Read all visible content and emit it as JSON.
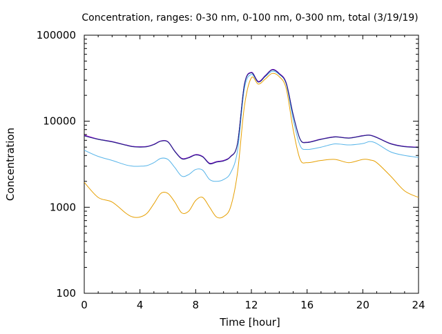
{
  "chart_data": {
    "type": "line",
    "title": "Concentration, ranges: 0-30 nm, 0-100 nm, 0-300 nm, total (3/19/19)",
    "xlabel": "Time [hour]",
    "ylabel": "Concentration",
    "xlim": [
      0,
      24
    ],
    "ylim": [
      100,
      100000
    ],
    "yscale": "log",
    "grid": false,
    "legend": "none",
    "x_ticks": [
      0,
      4,
      8,
      12,
      16,
      20,
      24
    ],
    "x_tick_labels": [
      "0",
      "4",
      "8",
      "12",
      "16",
      "20",
      "24"
    ],
    "y_ticks": [
      100,
      1000,
      10000,
      100000
    ],
    "y_tick_labels": [
      "100",
      "1000",
      "10000",
      "100000"
    ],
    "x": [
      0,
      1,
      2,
      3,
      3.5,
      4,
      4.5,
      5,
      5.5,
      6,
      6.5,
      7,
      7.5,
      8,
      8.5,
      9,
      9.5,
      10,
      10.5,
      11,
      11.5,
      12,
      12.5,
      13,
      13.5,
      14,
      14.5,
      15,
      15.5,
      16,
      17,
      18,
      19,
      20,
      20.5,
      21,
      22,
      23,
      24
    ],
    "series": [
      {
        "color": "#e69f00",
        "values": [
          1950,
          1300,
          1150,
          850,
          770,
          770,
          850,
          1100,
          1450,
          1450,
          1150,
          860,
          900,
          1200,
          1300,
          1000,
          770,
          780,
          1000,
          2500,
          15000,
          32000,
          27000,
          31000,
          36000,
          33000,
          24000,
          8000,
          3600,
          3300,
          3500,
          3600,
          3300,
          3600,
          3550,
          3300,
          2300,
          1550,
          1300
        ]
      },
      {
        "color": "#56b4e9",
        "values": [
          4600,
          3900,
          3500,
          3100,
          3000,
          3000,
          3050,
          3300,
          3700,
          3600,
          2900,
          2300,
          2400,
          2750,
          2700,
          2100,
          2000,
          2100,
          2500,
          4500,
          24000,
          35000,
          28500,
          33000,
          38000,
          35000,
          27000,
          10500,
          5200,
          4700,
          5000,
          5450,
          5300,
          5500,
          5800,
          5500,
          4400,
          4000,
          3800
        ]
      },
      {
        "color": "#009e73",
        "values": [
          6800,
          6200,
          5800,
          5300,
          5100,
          5050,
          5100,
          5400,
          5900,
          5800,
          4500,
          3700,
          3800,
          4100,
          3900,
          3250,
          3400,
          3500,
          3900,
          5500,
          27000,
          37000,
          29000,
          34000,
          40000,
          36000,
          28000,
          12000,
          6200,
          5700,
          6200,
          6600,
          6400,
          6800,
          6900,
          6500,
          5500,
          5100,
          5000
        ]
      },
      {
        "color": "#9400d3",
        "values": [
          6900,
          6200,
          5800,
          5300,
          5100,
          5050,
          5100,
          5400,
          5900,
          5800,
          4500,
          3700,
          3800,
          4100,
          3900,
          3250,
          3400,
          3500,
          3900,
          5500,
          27000,
          37000,
          29000,
          34000,
          40000,
          36000,
          28000,
          12000,
          6200,
          5700,
          6200,
          6600,
          6400,
          6800,
          6900,
          6500,
          5500,
          5100,
          5000
        ]
      },
      {
        "color": "#1a237e",
        "values": [
          6750,
          6150,
          5750,
          5250,
          5050,
          5000,
          5050,
          5350,
          5850,
          5750,
          4450,
          3650,
          3750,
          4050,
          3850,
          3200,
          3350,
          3450,
          3850,
          5450,
          26500,
          36500,
          28500,
          33500,
          39500,
          35500,
          27500,
          11800,
          6150,
          5650,
          6150,
          6550,
          6350,
          6750,
          6850,
          6450,
          5450,
          5050,
          4950
        ]
      }
    ]
  }
}
